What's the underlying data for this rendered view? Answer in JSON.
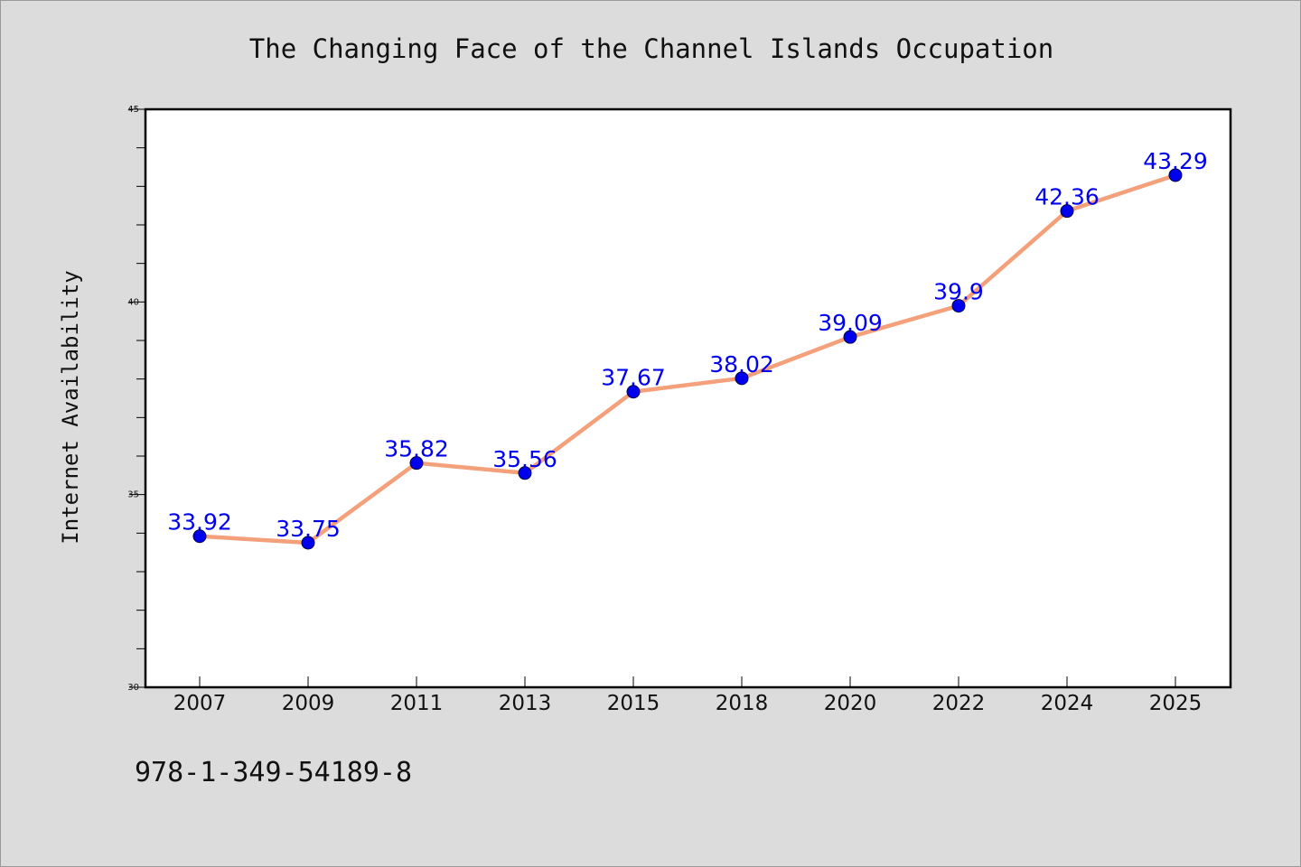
{
  "chart_data": {
    "type": "line",
    "title": "The Changing Face of the Channel Islands Occupation",
    "xlabel": "",
    "ylabel": "Internet Availability",
    "categories": [
      "2007",
      "2009",
      "2011",
      "2013",
      "2015",
      "2018",
      "2020",
      "2022",
      "2024",
      "2025"
    ],
    "series": [
      {
        "values": [
          33.92,
          33.75,
          35.82,
          35.56,
          37.67,
          38.02,
          39.09,
          39.9,
          42.36,
          43.29
        ],
        "data_labels": [
          "33.92",
          "33.75",
          "35.82",
          "35.56",
          "37.67",
          "38.02",
          "39.09",
          "39.9",
          "42.36",
          "43.29"
        ]
      }
    ],
    "ylim": [
      30,
      45
    ],
    "yticks": [
      "30",
      "35",
      "40",
      "45"
    ],
    "grid": false,
    "line_color": "#f4a07a",
    "marker_color": "#0000ee",
    "label_color": "#0000ee"
  },
  "footer": {
    "isbn": "978-1-349-54189-8"
  }
}
